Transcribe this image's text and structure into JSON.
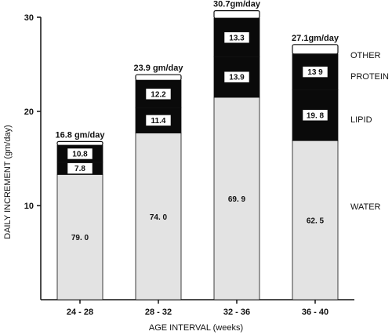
{
  "chart_data": {
    "type": "bar",
    "stacked": true,
    "title": "",
    "xlabel": "AGE INTERVAL (weeks)",
    "ylabel": "DAILY INCREMENT (gm/day)",
    "ylim": [
      0,
      30
    ],
    "yticks": [
      "10",
      "20",
      "30"
    ],
    "grid": false,
    "legend": "right",
    "categories": [
      "24 - 28",
      "28 - 32",
      "32 - 36",
      "36 - 40"
    ],
    "totals": [
      16.8,
      23.9,
      30.7,
      27.1
    ],
    "total_labels": [
      "16.8 gm/day",
      "23.9 gm/day",
      "30.7gm/day",
      "27.1gm/day"
    ],
    "series": [
      {
        "name": "WATER",
        "values": [
          13.3,
          17.7,
          21.5,
          16.9
        ],
        "labels": [
          "79. 0",
          "74. 0",
          "69. 9",
          "62. 5"
        ],
        "color": "#e3e3e3"
      },
      {
        "name": "LIPID",
        "values": [
          1.3,
          2.7,
          4.3,
          5.4
        ],
        "labels": [
          "7.8",
          "11.4",
          "13.9",
          "19. 8"
        ],
        "color": "#0a0a0a"
      },
      {
        "name": "PROTEIN",
        "values": [
          1.8,
          2.9,
          4.1,
          3.8
        ],
        "labels": [
          "10.8",
          "12.2",
          "13.3",
          "13 9"
        ],
        "color": "#0a0a0a"
      },
      {
        "name": "OTHER",
        "values": [
          0.4,
          0.6,
          0.8,
          1.0
        ],
        "labels": [
          "",
          "",
          "",
          ""
        ],
        "color": "#ffffff"
      }
    ]
  }
}
